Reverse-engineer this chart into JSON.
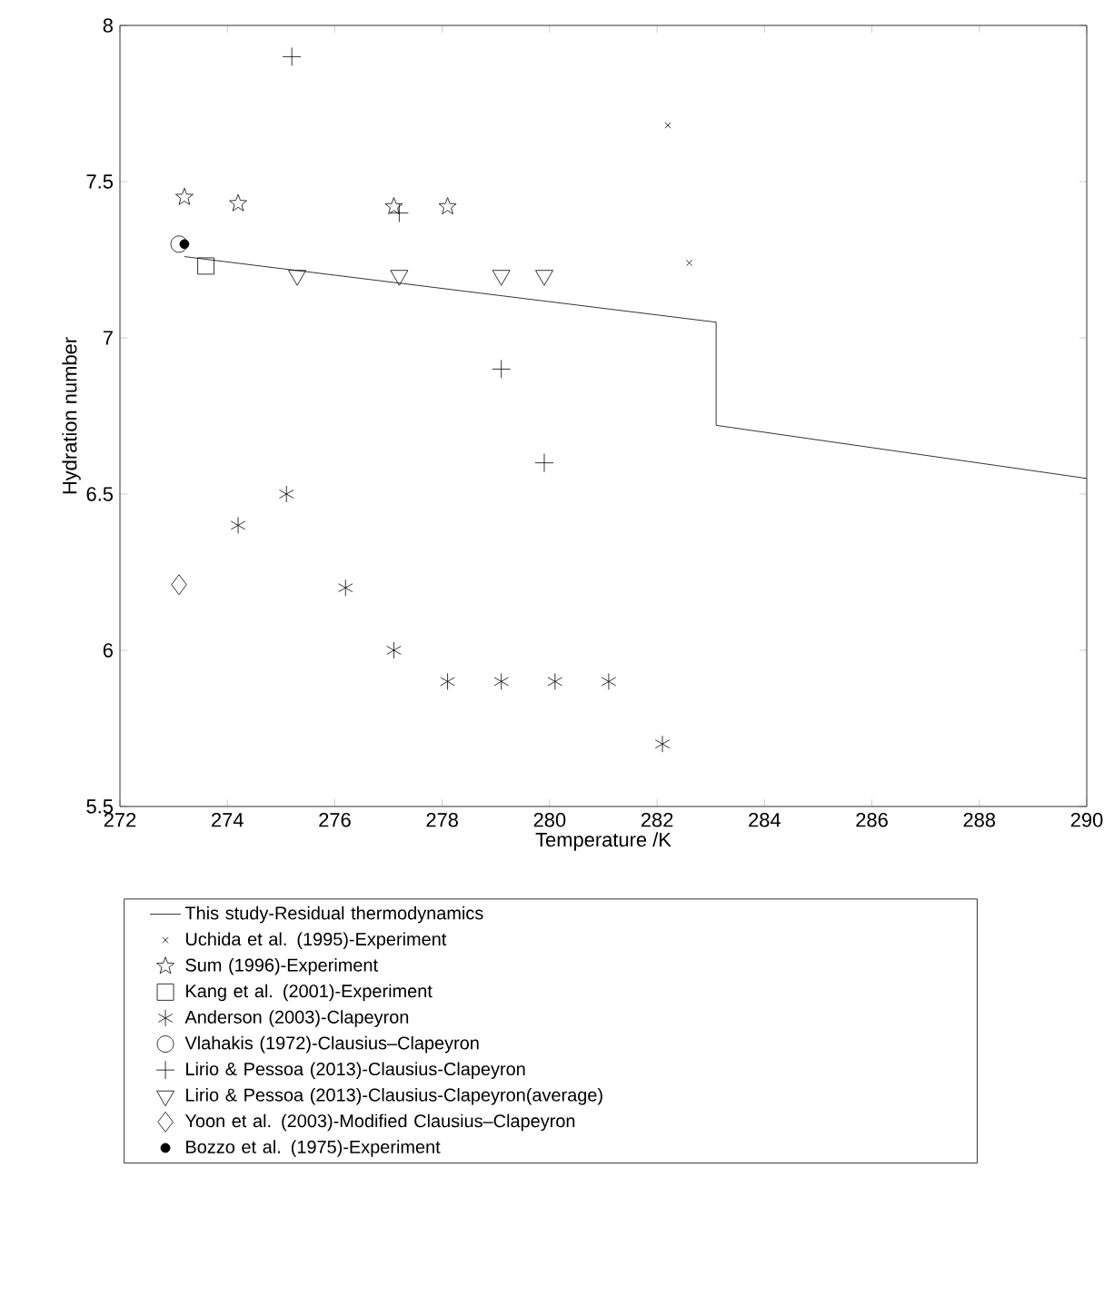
{
  "chart_data": {
    "type": "scatter",
    "xlabel": "Temperature /K",
    "ylabel": "Hydration number",
    "xlim": [
      272,
      290
    ],
    "ylim": [
      5.5,
      8
    ],
    "xticks": [
      272,
      274,
      276,
      278,
      280,
      282,
      284,
      286,
      288,
      290
    ],
    "yticks": [
      5.5,
      6,
      6.5,
      7,
      7.5,
      8
    ],
    "grid": false,
    "legend": "bottom",
    "series": [
      {
        "name": "This study-Residual thermodynamics",
        "type": "line",
        "line_style": "solid",
        "marker": "none",
        "color": "#000000",
        "x": [
          273.2,
          283.1,
          283.1,
          290
        ],
        "values": [
          7.26,
          7.05,
          6.72,
          6.55
        ]
      },
      {
        "name": "Uchida et al. (1995)-Experiment",
        "marker": "cross",
        "color": "#000000",
        "x": [
          282.2,
          282.6
        ],
        "values": [
          7.68,
          7.24
        ]
      },
      {
        "name": "Sum (1996)-Experiment",
        "marker": "star",
        "color": "#000000",
        "x": [
          273.2,
          274.2,
          277.1,
          278.1
        ],
        "values": [
          7.45,
          7.43,
          7.42,
          7.42
        ]
      },
      {
        "name": "Kang et al. (2001)-Experiment",
        "marker": "square",
        "color": "#000000",
        "x": [
          273.6
        ],
        "values": [
          7.23
        ]
      },
      {
        "name": "Anderson (2003)-Clapeyron",
        "marker": "cross",
        "color": "#000000",
        "x": [
          274.2,
          275.1,
          276.2,
          277.1,
          278.1,
          279.1,
          280.1,
          281.1,
          282.1
        ],
        "values": [
          6.4,
          6.5,
          6.2,
          6.0,
          5.9,
          5.9,
          5.9,
          5.9,
          5.7
        ]
      },
      {
        "name": "Vlahakis (1972)-Clausius–Clapeyron",
        "marker": "circle",
        "color": "#000000",
        "x": [
          273.1
        ],
        "values": [
          7.3
        ]
      },
      {
        "name": "Lirio & Pessoa (2013)-Clausius-Clapeyron",
        "marker": "cross",
        "color": "#000000",
        "x": [
          275.2,
          277.2,
          279.1,
          279.9
        ],
        "values": [
          7.9,
          7.4,
          6.9,
          6.6
        ]
      },
      {
        "name": "Lirio & Pessoa (2013)-Clausius-Clapeyron(average)",
        "marker": "triangle",
        "color": "#000000",
        "x": [
          275.3,
          277.2,
          279.1,
          279.9
        ],
        "values": [
          7.2,
          7.2,
          7.2,
          7.2
        ]
      },
      {
        "name": "Yoon et al. (2003)-Modified Clausius–Clapeyron",
        "marker": "diamond",
        "color": "#000000",
        "x": [
          273.1
        ],
        "values": [
          6.21
        ]
      },
      {
        "name": "Bozzo et al. (1975)-Experiment",
        "marker": "circle",
        "color": "#000000",
        "x": [
          273.2
        ],
        "values": [
          7.3
        ]
      }
    ]
  }
}
